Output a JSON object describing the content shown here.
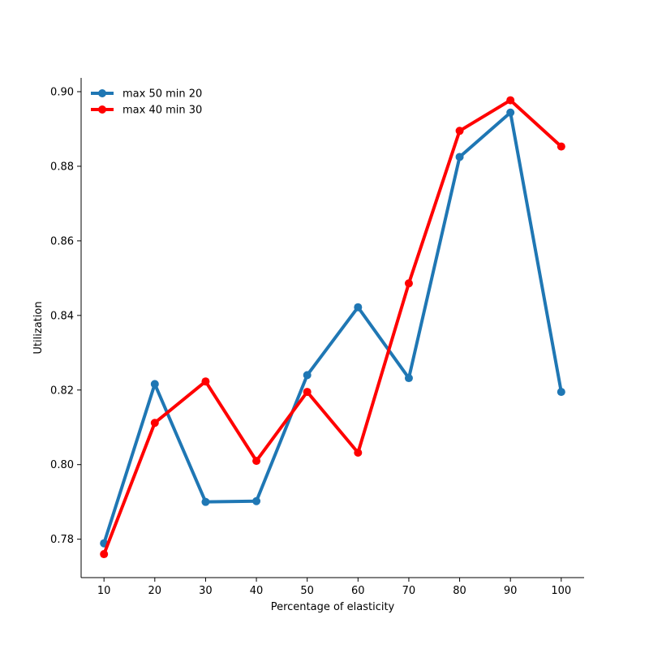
{
  "chart_data": {
    "type": "line",
    "xlabel": "Percentage of elasticity",
    "ylabel": "Utilization",
    "x": [
      10,
      20,
      30,
      40,
      50,
      60,
      70,
      80,
      90,
      100
    ],
    "xticks": [
      "10",
      "20",
      "30",
      "40",
      "50",
      "60",
      "70",
      "80",
      "90",
      "100"
    ],
    "xlim": [
      5.5,
      104.5
    ],
    "ylim": [
      0.7697,
      0.9037
    ],
    "yticks": [
      "0.78",
      "0.80",
      "0.82",
      "0.84",
      "0.86",
      "0.88",
      "0.90"
    ],
    "grid": false,
    "legend": "top-left",
    "series": [
      {
        "name": "max 50 min 20",
        "color": "#1f77b4",
        "values": [
          0.7789,
          0.8216,
          0.79,
          0.7902,
          0.824,
          0.8422,
          0.8232,
          0.8825,
          0.8944,
          0.8195
        ]
      },
      {
        "name": "max 40 min 30",
        "color": "#ff0000",
        "values": [
          0.776,
          0.8112,
          0.8223,
          0.801,
          0.8195,
          0.8032,
          0.8486,
          0.8895,
          0.8977,
          0.8853
        ]
      }
    ]
  }
}
